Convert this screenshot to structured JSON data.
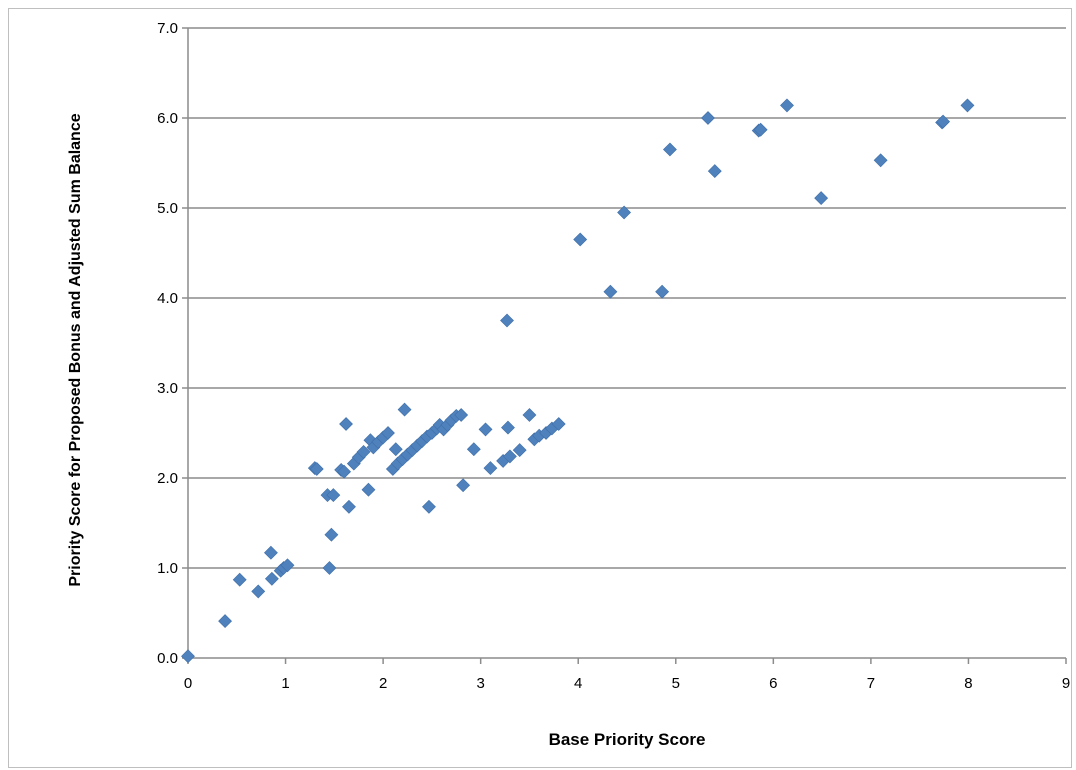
{
  "chart_data": {
    "type": "scatter",
    "title": "",
    "xlabel": "Base Priority Score",
    "ylabel": "Priority Score for Proposed Bonus and Adjusted Sum Balance",
    "xlim": [
      0,
      9
    ],
    "ylim": [
      0,
      7
    ],
    "x_ticks": [
      "0",
      "1",
      "2",
      "3",
      "4",
      "5",
      "6",
      "7",
      "8",
      "9"
    ],
    "y_ticks": [
      "0.0",
      "1.0",
      "2.0",
      "3.0",
      "4.0",
      "5.0",
      "6.0",
      "7.0"
    ],
    "grid": "horizontal",
    "legend": "none",
    "marker": "diamond",
    "color": "#4f81bd",
    "series": [
      {
        "x": [
          0,
          0.38,
          0.53,
          0.72,
          0.85,
          0.86,
          0.95,
          0.98,
          1.02,
          1.3,
          1.32,
          1.43,
          1.45,
          1.47,
          1.49,
          1.57,
          1.6,
          1.62,
          1.65,
          1.7,
          1.75,
          1.8,
          1.85,
          1.87,
          1.9,
          1.95,
          2.0,
          2.05,
          2.1,
          2.13,
          2.15,
          2.2,
          2.22,
          2.25,
          2.3,
          2.35,
          2.4,
          2.45,
          2.47,
          2.5,
          2.55,
          2.58,
          2.62,
          2.66,
          2.7,
          2.75,
          2.8,
          2.82,
          2.93,
          3.05,
          3.1,
          3.23,
          3.27,
          3.28,
          3.3,
          3.4,
          3.5,
          3.55,
          3.6,
          3.67,
          3.73,
          3.8,
          4.02,
          4.33,
          4.47,
          4.86,
          4.94,
          5.33,
          5.4,
          5.85,
          5.87,
          6.14,
          6.49,
          7.1,
          7.73,
          7.74,
          7.99
        ],
        "y": [
          0.02,
          0.41,
          0.87,
          0.74,
          1.17,
          0.88,
          0.97,
          1.0,
          1.03,
          2.11,
          2.1,
          1.81,
          1.0,
          1.37,
          1.81,
          2.09,
          2.07,
          2.6,
          1.68,
          2.16,
          2.23,
          2.29,
          1.87,
          2.42,
          2.34,
          2.4,
          2.45,
          2.5,
          2.1,
          2.32,
          2.16,
          2.21,
          2.76,
          2.26,
          2.31,
          2.36,
          2.41,
          2.46,
          1.68,
          2.5,
          2.55,
          2.59,
          2.54,
          2.59,
          2.64,
          2.69,
          2.7,
          1.92,
          2.32,
          2.54,
          2.11,
          2.19,
          3.75,
          2.56,
          2.24,
          2.31,
          2.7,
          2.43,
          2.47,
          2.5,
          2.55,
          2.6,
          4.65,
          4.07,
          4.95,
          4.07,
          5.65,
          6.0,
          5.41,
          5.86,
          5.87,
          6.14,
          5.11,
          5.53,
          5.95,
          5.96,
          6.14
        ]
      }
    ]
  }
}
